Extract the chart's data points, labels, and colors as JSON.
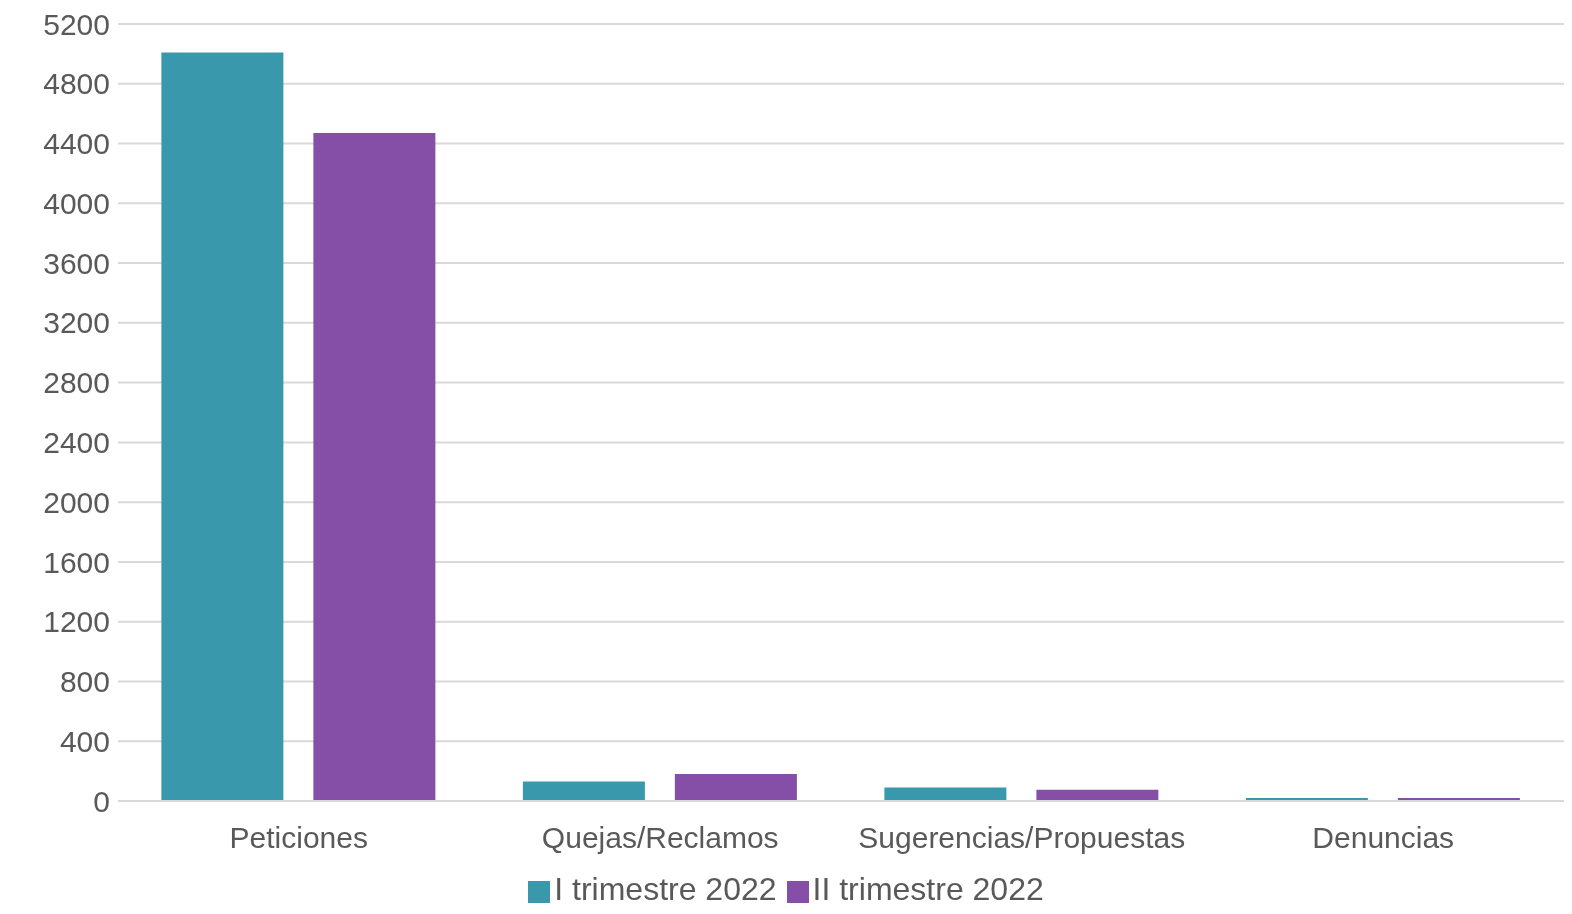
{
  "chart_data": {
    "type": "bar",
    "categories": [
      "Peticiones",
      "Quejas/Reclamos",
      "Sugerencias/Propuestas",
      "Denuncias"
    ],
    "series": [
      {
        "name": "I trimestre 2022",
        "color": "#3a98ac",
        "values": [
          5010,
          130,
          90,
          20
        ]
      },
      {
        "name": "II trimestre 2022",
        "color": "#854fa8",
        "values": [
          4470,
          180,
          75,
          20
        ]
      }
    ],
    "ylim": [
      0,
      5200
    ],
    "yticks": [
      0,
      400,
      800,
      1200,
      1600,
      2000,
      2400,
      2800,
      3200,
      3600,
      4000,
      4400,
      4800,
      5200
    ],
    "grid": "y",
    "legend": "bottom"
  }
}
